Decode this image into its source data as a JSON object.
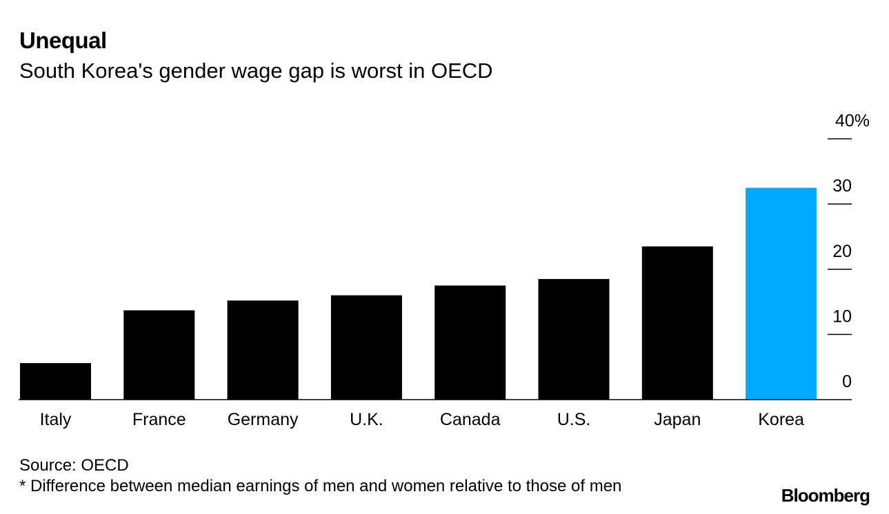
{
  "header": {
    "title": "Unequal",
    "subtitle": "South Korea's gender wage gap is worst in OECD"
  },
  "footer": {
    "source": "Source: OECD",
    "note": "* Difference between median earnings of men and women relative to those of men",
    "logo": "Bloomberg"
  },
  "chart_data": {
    "type": "bar",
    "categories": [
      "Italy",
      "France",
      "Germany",
      "U.K.",
      "Canada",
      "U.S.",
      "Japan",
      "Korea"
    ],
    "values": [
      5.6,
      13.7,
      15.2,
      16.0,
      17.5,
      18.5,
      23.5,
      32.5
    ],
    "highlight_category": "Korea",
    "colors": {
      "default": "#000000",
      "highlight": "#00aaff"
    },
    "ylim": [
      0,
      40
    ],
    "yticks": [
      0,
      10,
      20,
      30,
      40
    ],
    "ytick_labels": [
      "0",
      "10",
      "20",
      "30",
      "40%"
    ],
    "yaxis_position": "right",
    "grid": false
  }
}
